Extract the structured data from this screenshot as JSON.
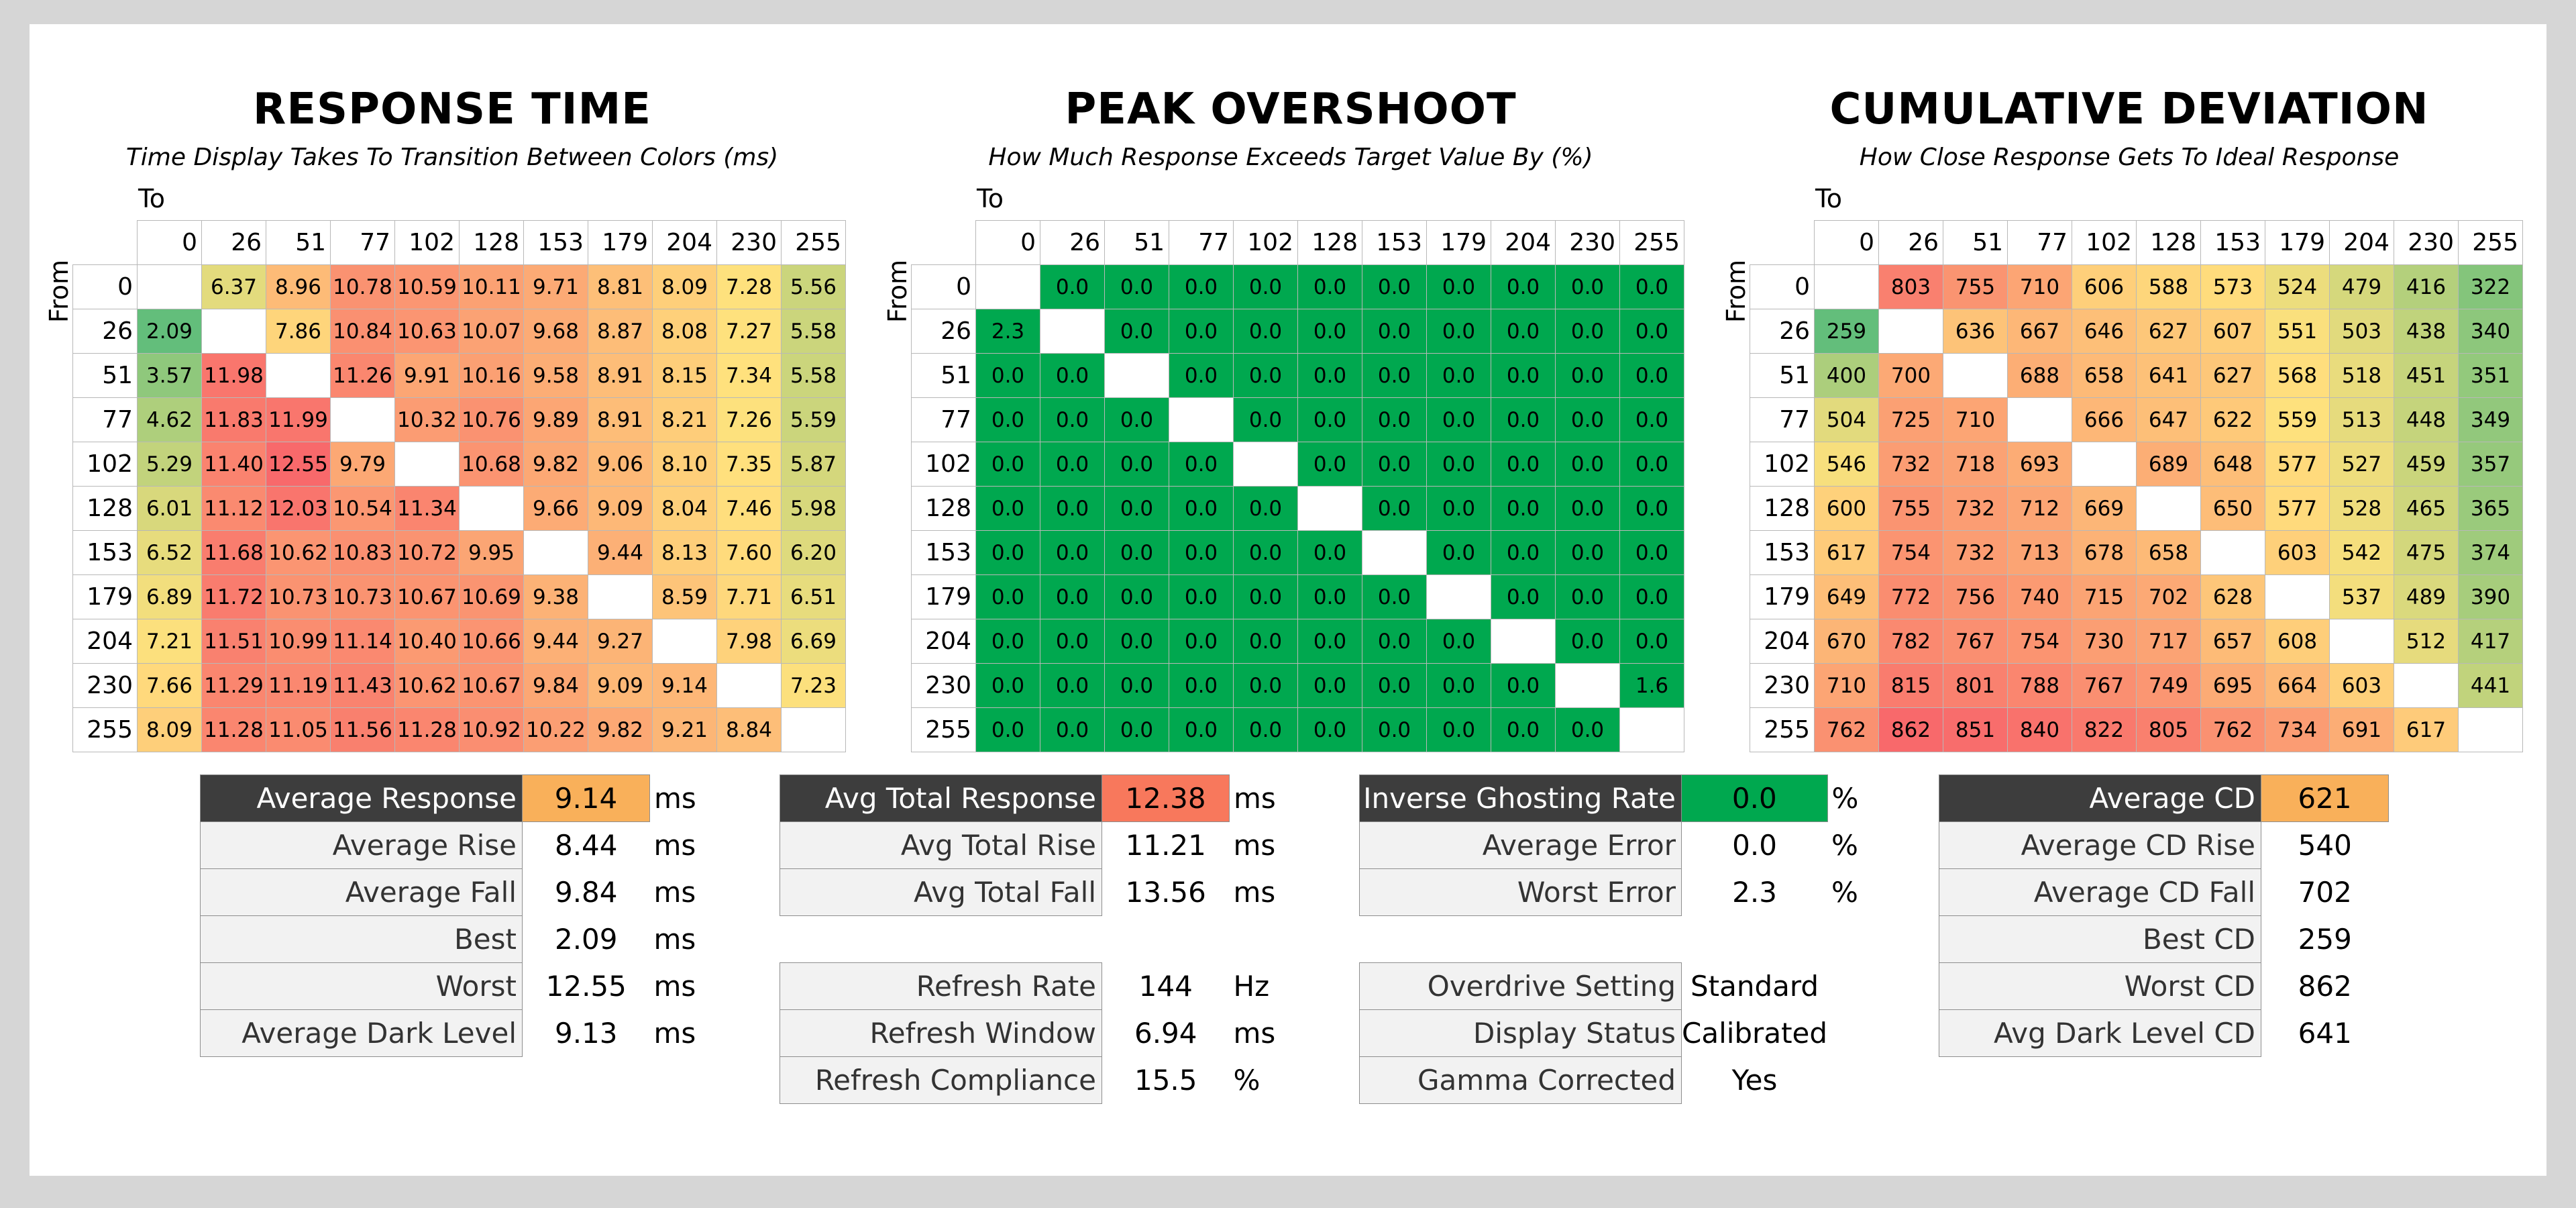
{
  "chart_data": [
    {
      "type": "heatmap",
      "title": "RESPONSE TIME",
      "subtitle": "Time Display Takes To Transition Between Colors (ms)",
      "xlabel": "To",
      "ylabel": "From",
      "x": [
        "0",
        "26",
        "51",
        "77",
        "102",
        "128",
        "153",
        "179",
        "204",
        "230",
        "255"
      ],
      "y": [
        "0",
        "26",
        "51",
        "77",
        "102",
        "128",
        "153",
        "179",
        "204",
        "230",
        "255"
      ],
      "values": [
        [
          null,
          6.37,
          8.96,
          10.78,
          10.59,
          10.11,
          9.71,
          8.81,
          8.09,
          7.28,
          5.56
        ],
        [
          2.09,
          null,
          7.86,
          10.84,
          10.63,
          10.07,
          9.68,
          8.87,
          8.08,
          7.27,
          5.58
        ],
        [
          3.57,
          11.98,
          null,
          11.26,
          9.91,
          10.16,
          9.58,
          8.91,
          8.15,
          7.34,
          5.58
        ],
        [
          4.62,
          11.83,
          11.99,
          null,
          10.32,
          10.76,
          9.89,
          8.91,
          8.21,
          7.26,
          5.59
        ],
        [
          5.29,
          11.4,
          12.55,
          9.79,
          null,
          10.68,
          9.82,
          9.06,
          8.1,
          7.35,
          5.87
        ],
        [
          6.01,
          11.12,
          12.03,
          10.54,
          11.34,
          null,
          9.66,
          9.09,
          8.04,
          7.46,
          5.98
        ],
        [
          6.52,
          11.68,
          10.62,
          10.83,
          10.72,
          9.95,
          null,
          9.44,
          8.13,
          7.6,
          6.2
        ],
        [
          6.89,
          11.72,
          10.73,
          10.73,
          10.67,
          10.69,
          9.38,
          null,
          8.59,
          7.71,
          6.51
        ],
        [
          7.21,
          11.51,
          10.99,
          11.14,
          10.4,
          10.66,
          9.44,
          9.27,
          null,
          7.98,
          6.69
        ],
        [
          7.66,
          11.29,
          11.19,
          11.43,
          10.62,
          10.67,
          9.84,
          9.09,
          9.14,
          null,
          7.23
        ],
        [
          8.09,
          11.28,
          11.05,
          11.56,
          11.28,
          10.92,
          10.22,
          9.82,
          9.21,
          8.84,
          null
        ]
      ],
      "decimals": 2,
      "scale": {
        "min": 2.09,
        "max": 12.55
      }
    },
    {
      "type": "heatmap",
      "title": "PEAK OVERSHOOT",
      "subtitle": "How Much Response Exceeds Target Value By (%)",
      "xlabel": "To",
      "ylabel": "From",
      "x": [
        "0",
        "26",
        "51",
        "77",
        "102",
        "128",
        "153",
        "179",
        "204",
        "230",
        "255"
      ],
      "y": [
        "0",
        "26",
        "51",
        "77",
        "102",
        "128",
        "153",
        "179",
        "204",
        "230",
        "255"
      ],
      "values": [
        [
          null,
          0.0,
          0.0,
          0.0,
          0.0,
          0.0,
          0.0,
          0.0,
          0.0,
          0.0,
          0.0
        ],
        [
          2.3,
          null,
          0.0,
          0.0,
          0.0,
          0.0,
          0.0,
          0.0,
          0.0,
          0.0,
          0.0
        ],
        [
          0.0,
          0.0,
          null,
          0.0,
          0.0,
          0.0,
          0.0,
          0.0,
          0.0,
          0.0,
          0.0
        ],
        [
          0.0,
          0.0,
          0.0,
          null,
          0.0,
          0.0,
          0.0,
          0.0,
          0.0,
          0.0,
          0.0
        ],
        [
          0.0,
          0.0,
          0.0,
          0.0,
          null,
          0.0,
          0.0,
          0.0,
          0.0,
          0.0,
          0.0
        ],
        [
          0.0,
          0.0,
          0.0,
          0.0,
          0.0,
          null,
          0.0,
          0.0,
          0.0,
          0.0,
          0.0
        ],
        [
          0.0,
          0.0,
          0.0,
          0.0,
          0.0,
          0.0,
          null,
          0.0,
          0.0,
          0.0,
          0.0
        ],
        [
          0.0,
          0.0,
          0.0,
          0.0,
          0.0,
          0.0,
          0.0,
          null,
          0.0,
          0.0,
          0.0
        ],
        [
          0.0,
          0.0,
          0.0,
          0.0,
          0.0,
          0.0,
          0.0,
          0.0,
          null,
          0.0,
          0.0
        ],
        [
          0.0,
          0.0,
          0.0,
          0.0,
          0.0,
          0.0,
          0.0,
          0.0,
          0.0,
          null,
          1.6
        ],
        [
          0.0,
          0.0,
          0.0,
          0.0,
          0.0,
          0.0,
          0.0,
          0.0,
          0.0,
          0.0,
          null
        ]
      ],
      "decimals": 1,
      "scale": {
        "min": 0,
        "max": 0
      },
      "color": "#00a84f"
    },
    {
      "type": "heatmap",
      "title": "CUMULATIVE DEVIATION",
      "subtitle": "How Close Response Gets To Ideal Response",
      "xlabel": "To",
      "ylabel": "From",
      "x": [
        "0",
        "26",
        "51",
        "77",
        "102",
        "128",
        "153",
        "179",
        "204",
        "230",
        "255"
      ],
      "y": [
        "0",
        "26",
        "51",
        "77",
        "102",
        "128",
        "153",
        "179",
        "204",
        "230",
        "255"
      ],
      "values": [
        [
          null,
          803,
          755,
          710,
          606,
          588,
          573,
          524,
          479,
          416,
          322
        ],
        [
          259,
          null,
          636,
          667,
          646,
          627,
          607,
          551,
          503,
          438,
          340
        ],
        [
          400,
          700,
          null,
          688,
          658,
          641,
          627,
          568,
          518,
          451,
          351
        ],
        [
          504,
          725,
          710,
          null,
          666,
          647,
          622,
          559,
          513,
          448,
          349
        ],
        [
          546,
          732,
          718,
          693,
          null,
          689,
          648,
          577,
          527,
          459,
          357
        ],
        [
          600,
          755,
          732,
          712,
          669,
          null,
          650,
          577,
          528,
          465,
          365
        ],
        [
          617,
          754,
          732,
          713,
          678,
          658,
          null,
          603,
          542,
          475,
          374
        ],
        [
          649,
          772,
          756,
          740,
          715,
          702,
          628,
          null,
          537,
          489,
          390
        ],
        [
          670,
          782,
          767,
          754,
          730,
          717,
          657,
          608,
          null,
          512,
          417
        ],
        [
          710,
          815,
          801,
          788,
          767,
          749,
          695,
          664,
          603,
          null,
          441
        ],
        [
          762,
          862,
          851,
          840,
          822,
          805,
          762,
          734,
          691,
          617,
          null
        ]
      ],
      "decimals": 0,
      "scale": {
        "min": 259,
        "max": 862
      }
    }
  ],
  "stats": {
    "response": [
      {
        "label": "Average Response",
        "value": "9.14",
        "unit": "ms",
        "highlight": "#f9b05a",
        "dark": true
      },
      {
        "label": "Average Rise",
        "value": "8.44",
        "unit": "ms"
      },
      {
        "label": "Average Fall",
        "value": "9.84",
        "unit": "ms"
      },
      {
        "label": "Best",
        "value": "2.09",
        "unit": "ms"
      },
      {
        "label": "Worst",
        "value": "12.55",
        "unit": "ms"
      },
      {
        "label": "Average Dark Level",
        "value": "9.13",
        "unit": "ms"
      }
    ],
    "total": [
      {
        "label": "Avg Total Response",
        "value": "12.38",
        "unit": "ms",
        "highlight": "#f8785c",
        "dark": true
      },
      {
        "label": "Avg Total Rise",
        "value": "11.21",
        "unit": "ms"
      },
      {
        "label": "Avg Total Fall",
        "value": "13.56",
        "unit": "ms"
      },
      {
        "gap": true
      },
      {
        "label": "Refresh Rate",
        "value": "144",
        "unit": "Hz"
      },
      {
        "label": "Refresh Window",
        "value": "6.94",
        "unit": "ms"
      },
      {
        "label": "Refresh Compliance",
        "value": "15.5",
        "unit": "%"
      }
    ],
    "ghosting": [
      {
        "label": "Inverse Ghosting Rate",
        "value": "0.0",
        "unit": "%",
        "highlight": "#00a84f",
        "dark": true
      },
      {
        "label": "Average Error",
        "value": "0.0",
        "unit": "%"
      },
      {
        "label": "Worst Error",
        "value": "2.3",
        "unit": "%"
      },
      {
        "gap": true
      },
      {
        "label": "Overdrive Setting",
        "value": "Standard",
        "unit": ""
      },
      {
        "label": "Display Status",
        "value": "Calibrated",
        "unit": ""
      },
      {
        "label": "Gamma Corrected",
        "value": "Yes",
        "unit": ""
      }
    ],
    "cd": [
      {
        "label": "Average CD",
        "value": "621",
        "unit": "",
        "highlight": "#f9b05a",
        "dark": true
      },
      {
        "label": "Average CD Rise",
        "value": "540",
        "unit": ""
      },
      {
        "label": "Average CD Fall",
        "value": "702",
        "unit": ""
      },
      {
        "label": "Best CD",
        "value": "259",
        "unit": ""
      },
      {
        "label": "Worst CD",
        "value": "862",
        "unit": ""
      },
      {
        "label": "Avg Dark Level CD",
        "value": "641",
        "unit": ""
      }
    ]
  }
}
